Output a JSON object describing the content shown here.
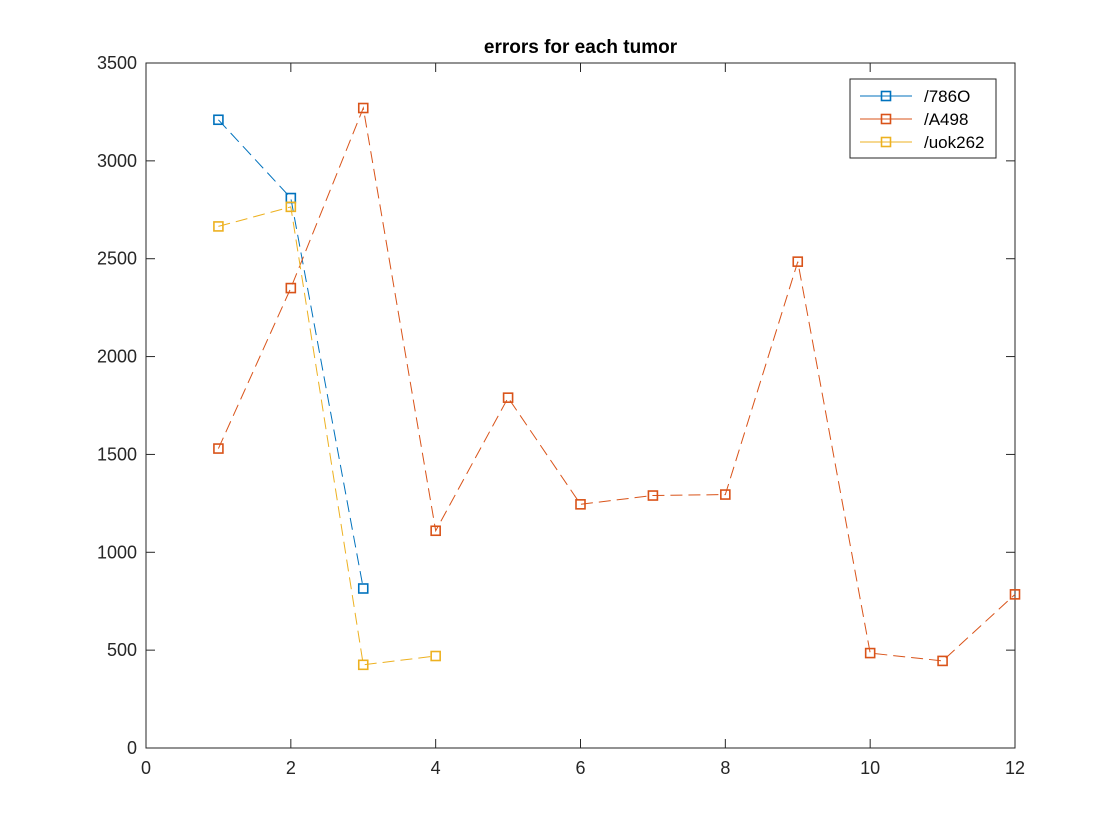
{
  "chart_data": {
    "type": "line",
    "title": "errors for each tumor",
    "xlabel": "",
    "ylabel": "",
    "xlim": [
      0,
      12
    ],
    "ylim": [
      0,
      3500
    ],
    "x_ticks": [
      0,
      2,
      4,
      6,
      8,
      10,
      12
    ],
    "y_ticks": [
      0,
      500,
      1000,
      1500,
      2000,
      2500,
      3000,
      3500
    ],
    "grid": false,
    "box": true,
    "legend_position": "top-right",
    "series": [
      {
        "name": "/786O",
        "color": "#0072BD",
        "line_style": "dashed",
        "marker": "square",
        "x": [
          1,
          2,
          3
        ],
        "y": [
          3210,
          2810,
          815
        ]
      },
      {
        "name": "/A498",
        "color": "#D95319",
        "line_style": "dashed",
        "marker": "square",
        "x": [
          1,
          2,
          3,
          4,
          5,
          6,
          7,
          8,
          9,
          10,
          11,
          12
        ],
        "y": [
          1530,
          2350,
          3270,
          1110,
          1790,
          1245,
          1290,
          1295,
          2485,
          485,
          445,
          785
        ]
      },
      {
        "name": "/uok262",
        "color": "#EDB120",
        "line_style": "dashed",
        "marker": "square",
        "x": [
          1,
          2,
          3,
          4
        ],
        "y": [
          2665,
          2765,
          425,
          470
        ]
      }
    ]
  }
}
